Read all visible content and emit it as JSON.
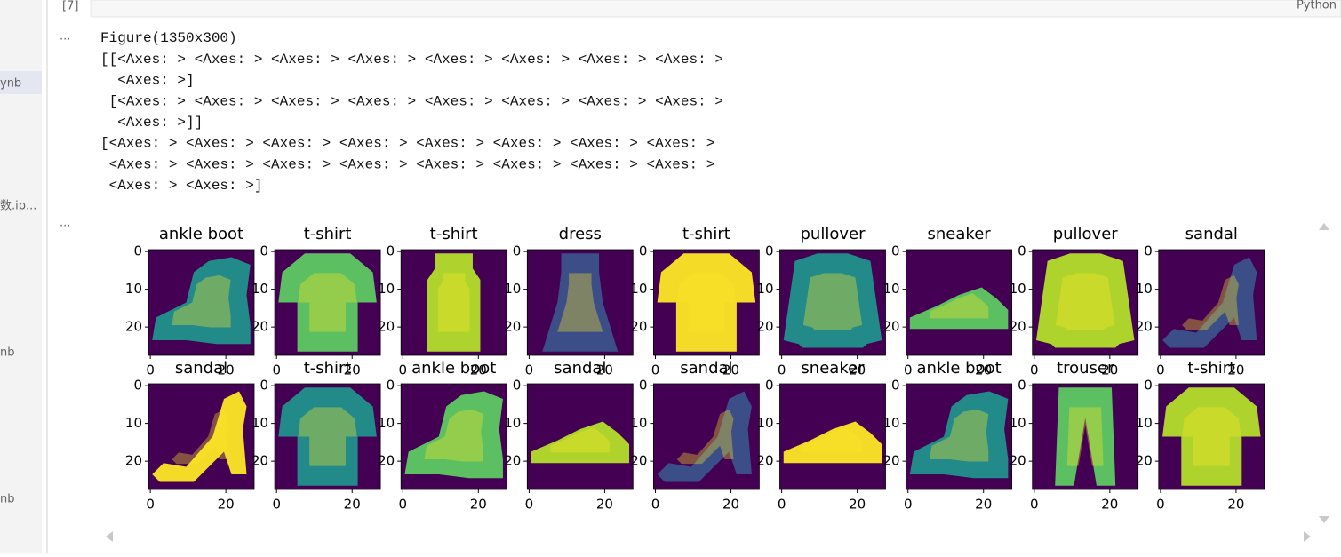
{
  "cell": {
    "prompt": "[7]",
    "language": "Python"
  },
  "sidebar": [
    "ynb",
    "数.ip...",
    "nb",
    "nb"
  ],
  "outputs": [
    {
      "prompt": "...",
      "lines": [
        "Figure(1350x300)",
        "[[<Axes: > <Axes: > <Axes: > <Axes: > <Axes: > <Axes: > <Axes: > <Axes: >",
        "  <Axes: >]",
        " [<Axes: > <Axes: > <Axes: > <Axes: > <Axes: > <Axes: > <Axes: > <Axes: >",
        "  <Axes: >]]",
        "[<Axes: > <Axes: > <Axes: > <Axes: > <Axes: > <Axes: > <Axes: > <Axes: >",
        " <Axes: > <Axes: > <Axes: > <Axes: > <Axes: > <Axes: > <Axes: > <Axes: >",
        " <Axes: > <Axes: >]"
      ]
    },
    {
      "prompt": "...",
      "figure": {
        "titles": [
          "ankle boot",
          "t-shirt",
          "t-shirt",
          "dress",
          "t-shirt",
          "pullover",
          "sneaker",
          "pullover",
          "sandal",
          "sandal",
          "t-shirt",
          "ankle boot",
          "sandal",
          "sandal",
          "sneaker",
          "ankle boot",
          "trouser",
          "t-shirt"
        ],
        "yticks": [
          0,
          10,
          20
        ],
        "xticks": [
          0,
          20
        ]
      }
    }
  ]
}
